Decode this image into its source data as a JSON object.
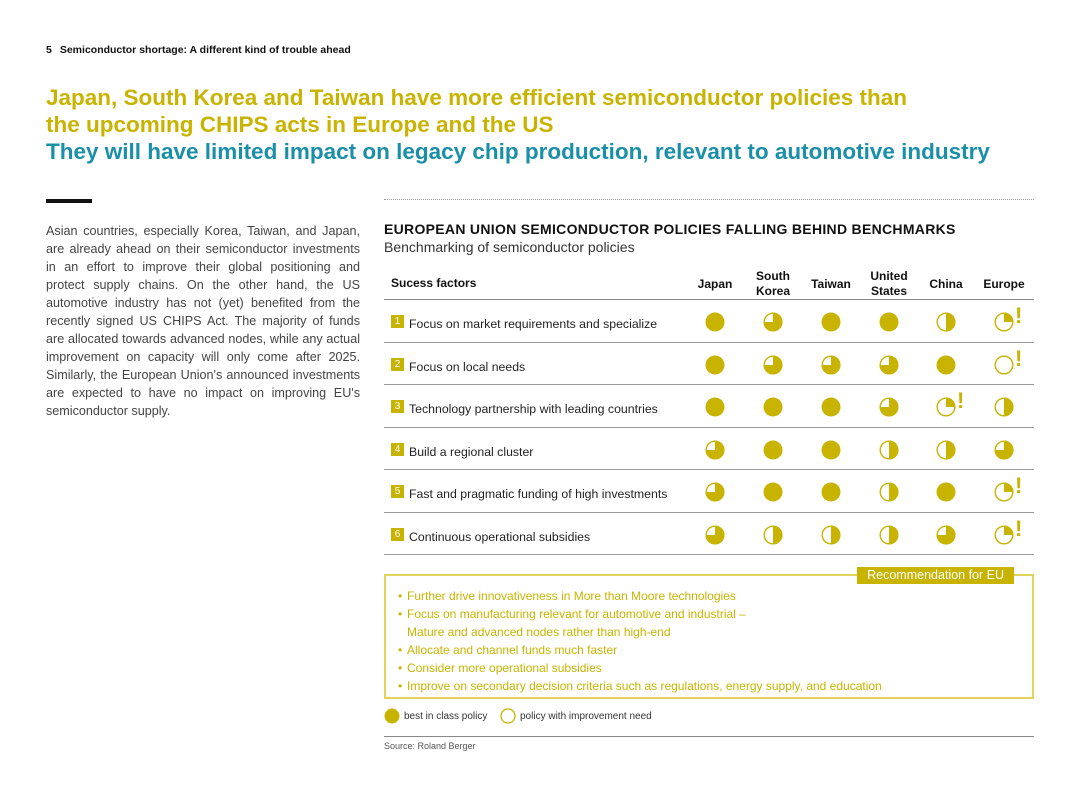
{
  "header": {
    "page_number": "5",
    "title": "Semiconductor shortage: A different kind of trouble ahead"
  },
  "headline": {
    "line1": "Japan, South Korea and Taiwan have more efficient semiconductor policies than",
    "line2": "the upcoming CHIPS acts in Europe and the US",
    "subline": "They will have limited impact on legacy chip production, relevant to automotive industry"
  },
  "body_text": "Asian countries, especially Korea, Taiwan, and Japan, are already ahead on their semiconductor investments in an effort to improve their global positioning and protect supply chains. On the other hand, the US automotive industry has not (yet) benefited from the recently signed US CHIPS Act. The majority of funds are allocated towards advanced nodes, while any actual improvement on capacity will only come after 2025. Similarly, the European Union's announced investments are expected to have no impact on improving EU's semiconductor supply.",
  "chart": {
    "title": "EUROPEAN UNION SEMICONDUCTOR POLICIES FALLING BEHIND BENCHMARKS",
    "subtitle": "Benchmarking of semiconductor policies",
    "factor_header": "Sucess factors",
    "columns": [
      {
        "line1": "Japan",
        "line2": ""
      },
      {
        "line1": "South",
        "line2": "Korea"
      },
      {
        "line1": "Taiwan",
        "line2": ""
      },
      {
        "line1": "United",
        "line2": "States"
      },
      {
        "line1": "China",
        "line2": ""
      },
      {
        "line1": "Europe",
        "line2": ""
      }
    ],
    "rows": [
      {
        "num": "1",
        "label": "Focus on market requirements and specialize",
        "ratings": [
          4,
          3,
          4,
          4,
          2,
          1
        ],
        "warnings": [
          false,
          false,
          false,
          false,
          false,
          true
        ]
      },
      {
        "num": "2",
        "label": "Focus on local needs",
        "ratings": [
          4,
          3,
          3,
          3,
          4,
          0
        ],
        "warnings": [
          false,
          false,
          false,
          false,
          false,
          true
        ]
      },
      {
        "num": "3",
        "label": "Technology partnership with leading countries",
        "ratings": [
          4,
          4,
          4,
          3,
          1,
          2
        ],
        "warnings": [
          false,
          false,
          false,
          false,
          true,
          false
        ]
      },
      {
        "num": "4",
        "label": "Build a regional cluster",
        "ratings": [
          3,
          4,
          4,
          2,
          2,
          3
        ],
        "warnings": [
          false,
          false,
          false,
          false,
          false,
          false
        ]
      },
      {
        "num": "5",
        "label": "Fast and pragmatic funding of high investments",
        "ratings": [
          3,
          4,
          4,
          2,
          4,
          1
        ],
        "warnings": [
          false,
          false,
          false,
          false,
          false,
          true
        ]
      },
      {
        "num": "6",
        "label": "Continuous operational subsidies",
        "ratings": [
          3,
          2,
          2,
          2,
          3,
          1
        ],
        "warnings": [
          false,
          false,
          false,
          false,
          false,
          true
        ]
      }
    ],
    "rating_scale_quarters": 4,
    "warning_mark": "!"
  },
  "recommendation": {
    "tag": "Recommendation for EU",
    "bullet": "•",
    "items": [
      {
        "line1": "Further drive innovativeness in More than Moore technologies",
        "line2": ""
      },
      {
        "line1": "Focus on manufacturing relevant for automotive and industrial –",
        "line2": "Mature and advanced nodes rather than high-end"
      },
      {
        "line1": "Allocate and channel funds much faster",
        "line2": ""
      },
      {
        "line1": "Consider more operational subsidies",
        "line2": ""
      },
      {
        "line1": "Improve on secondary decision criteria such as regulations, energy supply, and education",
        "line2": ""
      }
    ]
  },
  "legend": {
    "best": "best in class policy",
    "need": "policy with improvement need"
  },
  "source": "Source: Roland Berger",
  "colors": {
    "accent": "#c8b400",
    "teal": "#1a8fa8",
    "harvey_fill": "#c8b400",
    "harvey_outline": "#c8b400"
  }
}
